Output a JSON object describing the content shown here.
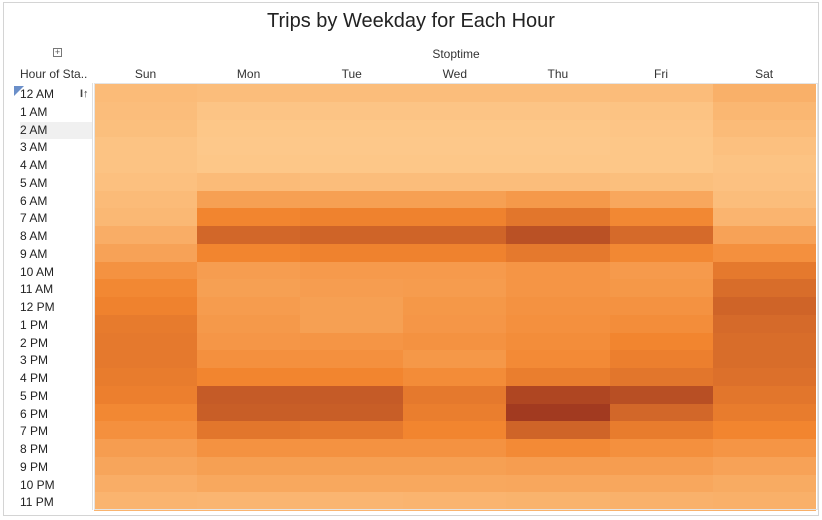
{
  "chart_data": {
    "type": "heatmap",
    "title": "Trips by Weekday for Each Hour",
    "column_field": "Stoptime",
    "row_field": "Hour of Sta..",
    "columns": [
      "Sun",
      "Mon",
      "Tue",
      "Wed",
      "Thu",
      "Fri",
      "Sat"
    ],
    "rows": [
      "12 AM",
      "1 AM",
      "2 AM",
      "3 AM",
      "4 AM",
      "5 AM",
      "6 AM",
      "7 AM",
      "8 AM",
      "9 AM",
      "10 AM",
      "11 AM",
      "12 PM",
      "1 PM",
      "2 PM",
      "3 PM",
      "4 PM",
      "5 PM",
      "6 PM",
      "7 PM",
      "8 PM",
      "9 PM",
      "10 PM",
      "11 PM"
    ],
    "values": [
      [
        0.1,
        0.08,
        0.08,
        0.08,
        0.08,
        0.09,
        0.18
      ],
      [
        0.08,
        0.03,
        0.03,
        0.03,
        0.03,
        0.04,
        0.13
      ],
      [
        0.07,
        0.01,
        0.01,
        0.01,
        0.01,
        0.02,
        0.1
      ],
      [
        0.04,
        0.0,
        0.0,
        0.0,
        0.0,
        0.01,
        0.06
      ],
      [
        0.04,
        0.01,
        0.01,
        0.01,
        0.01,
        0.01,
        0.04
      ],
      [
        0.06,
        0.1,
        0.08,
        0.08,
        0.08,
        0.07,
        0.05
      ],
      [
        0.1,
        0.3,
        0.3,
        0.3,
        0.35,
        0.25,
        0.08
      ],
      [
        0.12,
        0.5,
        0.52,
        0.52,
        0.6,
        0.48,
        0.15
      ],
      [
        0.2,
        0.7,
        0.72,
        0.72,
        0.85,
        0.68,
        0.28
      ],
      [
        0.28,
        0.5,
        0.52,
        0.52,
        0.58,
        0.48,
        0.42
      ],
      [
        0.4,
        0.32,
        0.34,
        0.34,
        0.38,
        0.34,
        0.58
      ],
      [
        0.48,
        0.3,
        0.32,
        0.33,
        0.38,
        0.36,
        0.66
      ],
      [
        0.52,
        0.33,
        0.3,
        0.36,
        0.4,
        0.4,
        0.72
      ],
      [
        0.57,
        0.35,
        0.3,
        0.37,
        0.42,
        0.44,
        0.68
      ],
      [
        0.58,
        0.37,
        0.38,
        0.4,
        0.44,
        0.5,
        0.66
      ],
      [
        0.58,
        0.42,
        0.42,
        0.36,
        0.46,
        0.54,
        0.66
      ],
      [
        0.56,
        0.5,
        0.5,
        0.45,
        0.55,
        0.6,
        0.64
      ],
      [
        0.54,
        0.78,
        0.78,
        0.58,
        0.92,
        0.86,
        0.6
      ],
      [
        0.48,
        0.76,
        0.76,
        0.55,
        1.0,
        0.7,
        0.56
      ],
      [
        0.42,
        0.6,
        0.58,
        0.5,
        0.72,
        0.56,
        0.5
      ],
      [
        0.32,
        0.4,
        0.4,
        0.4,
        0.46,
        0.42,
        0.38
      ],
      [
        0.26,
        0.3,
        0.3,
        0.3,
        0.32,
        0.32,
        0.28
      ],
      [
        0.2,
        0.24,
        0.24,
        0.24,
        0.25,
        0.25,
        0.22
      ],
      [
        0.15,
        0.14,
        0.14,
        0.15,
        0.16,
        0.17,
        0.18
      ]
    ],
    "value_scale": "relative trip count (0 = lowest, 1 = highest), read from color intensity",
    "color_low": "#fdc88a",
    "color_mid": "#f2852f",
    "color_high": "#a23a20",
    "selected_row": "2 AM"
  },
  "icons": {
    "expand": "plus-square-icon",
    "sort": "sort-bars-icon"
  },
  "symbols": {
    "expand_glyph": "+",
    "sort_glyph": "I↑"
  }
}
